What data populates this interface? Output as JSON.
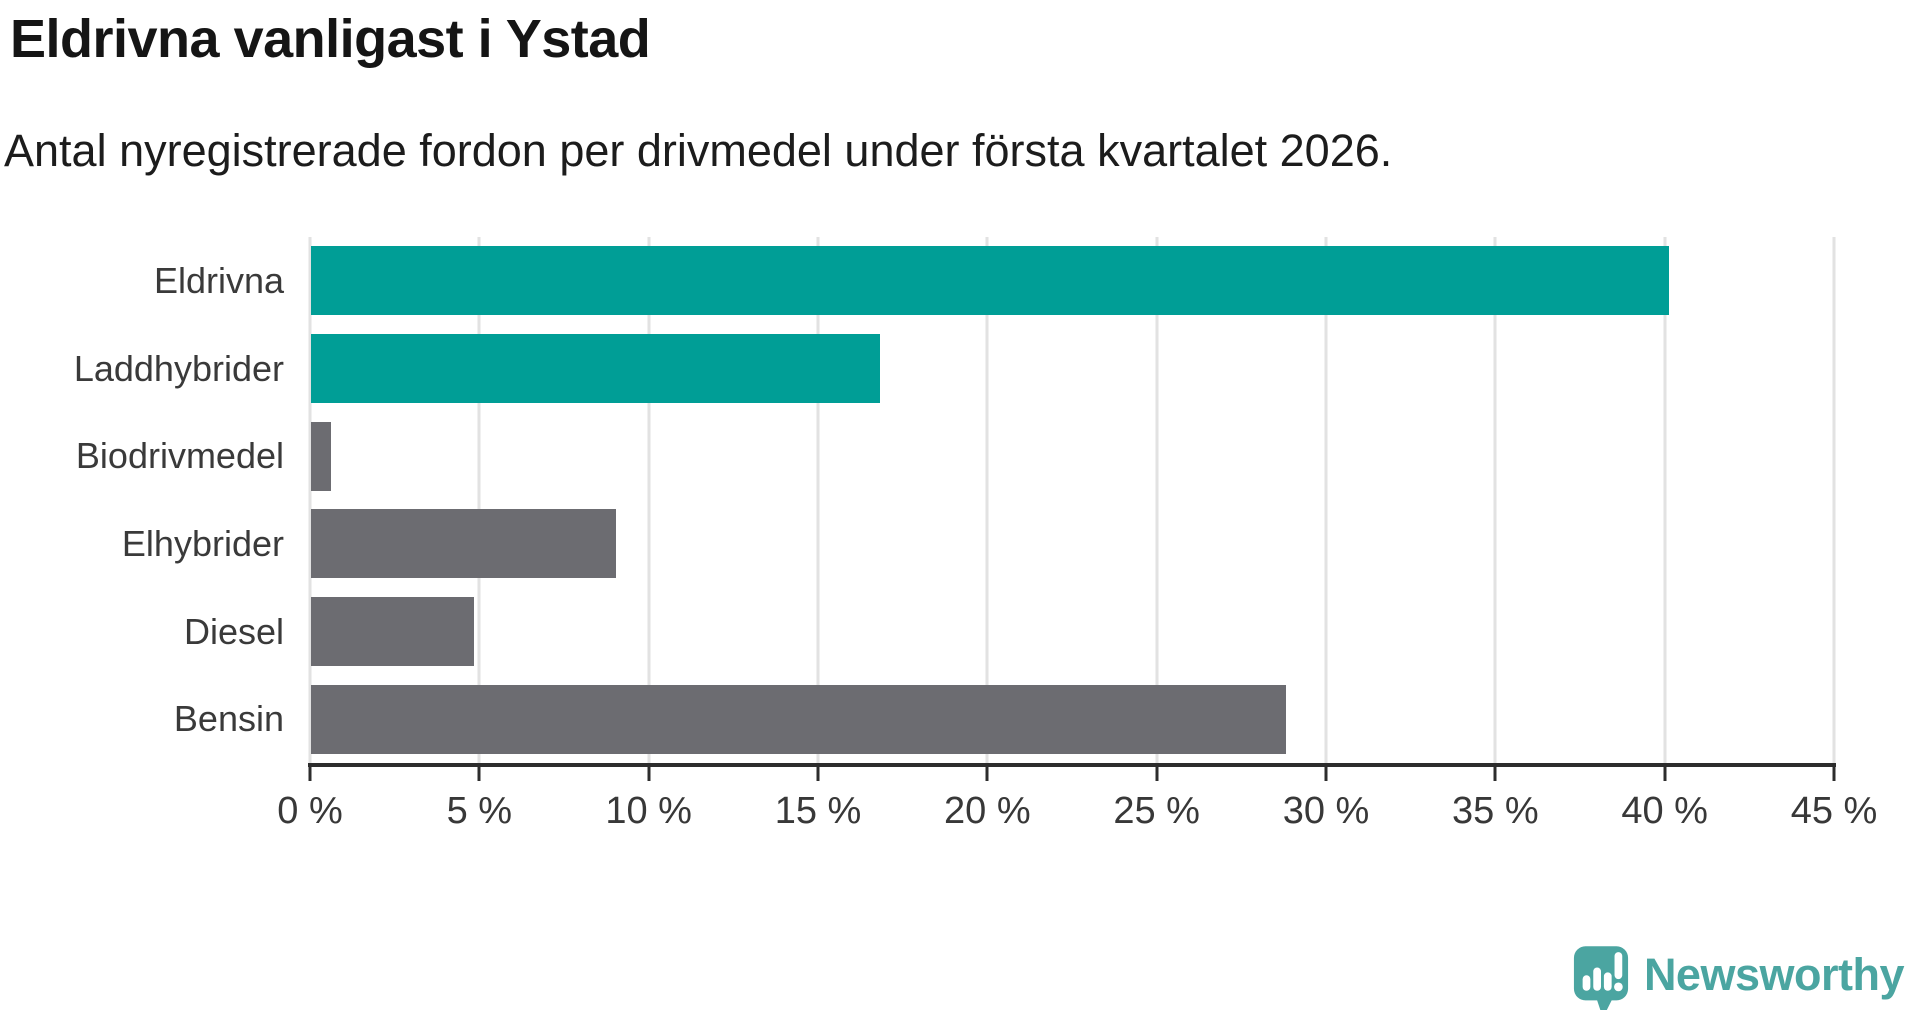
{
  "header": {
    "title": "Eldrivna vanligast i Ystad",
    "subtitle": "Antal nyregistrerade fordon per drivmedel under första kvartalet 2026."
  },
  "chart_data": {
    "type": "bar",
    "orientation": "horizontal",
    "title": "Eldrivna vanligast i Ystad",
    "subtitle": "Antal nyregistrerade fordon per drivmedel under första kvartalet 2026.",
    "categories": [
      "Eldrivna",
      "Laddhybrider",
      "Biodrivmedel",
      "Elhybrider",
      "Diesel",
      "Bensin"
    ],
    "values": [
      40.1,
      16.8,
      0.6,
      9.0,
      4.8,
      28.8
    ],
    "unit": "%",
    "bar_colors": [
      "#009E96",
      "#009E96",
      "#6C6C71",
      "#6C6C71",
      "#6C6C71",
      "#6C6C71"
    ],
    "xlabel": "",
    "ylabel": "",
    "xlim": [
      0,
      45
    ],
    "x_ticks": [
      0,
      5,
      10,
      15,
      20,
      25,
      30,
      35,
      40,
      45
    ],
    "x_tick_labels": [
      "0 %",
      "5 %",
      "10 %",
      "15 %",
      "20 %",
      "25 %",
      "30 %",
      "35 %",
      "40 %",
      "45 %"
    ],
    "grid": "vertical",
    "legend": false
  },
  "colors": {
    "accent_teal": "#009E96",
    "bar_gray": "#6C6C71",
    "gridline": "#E2E2E2",
    "axis_line": "#2D2D2D",
    "title_text": "#151515",
    "label_text": "#3A3A3A",
    "logo_teal": "#4BA5A1"
  },
  "footer": {
    "brand": "Newsworthy"
  }
}
